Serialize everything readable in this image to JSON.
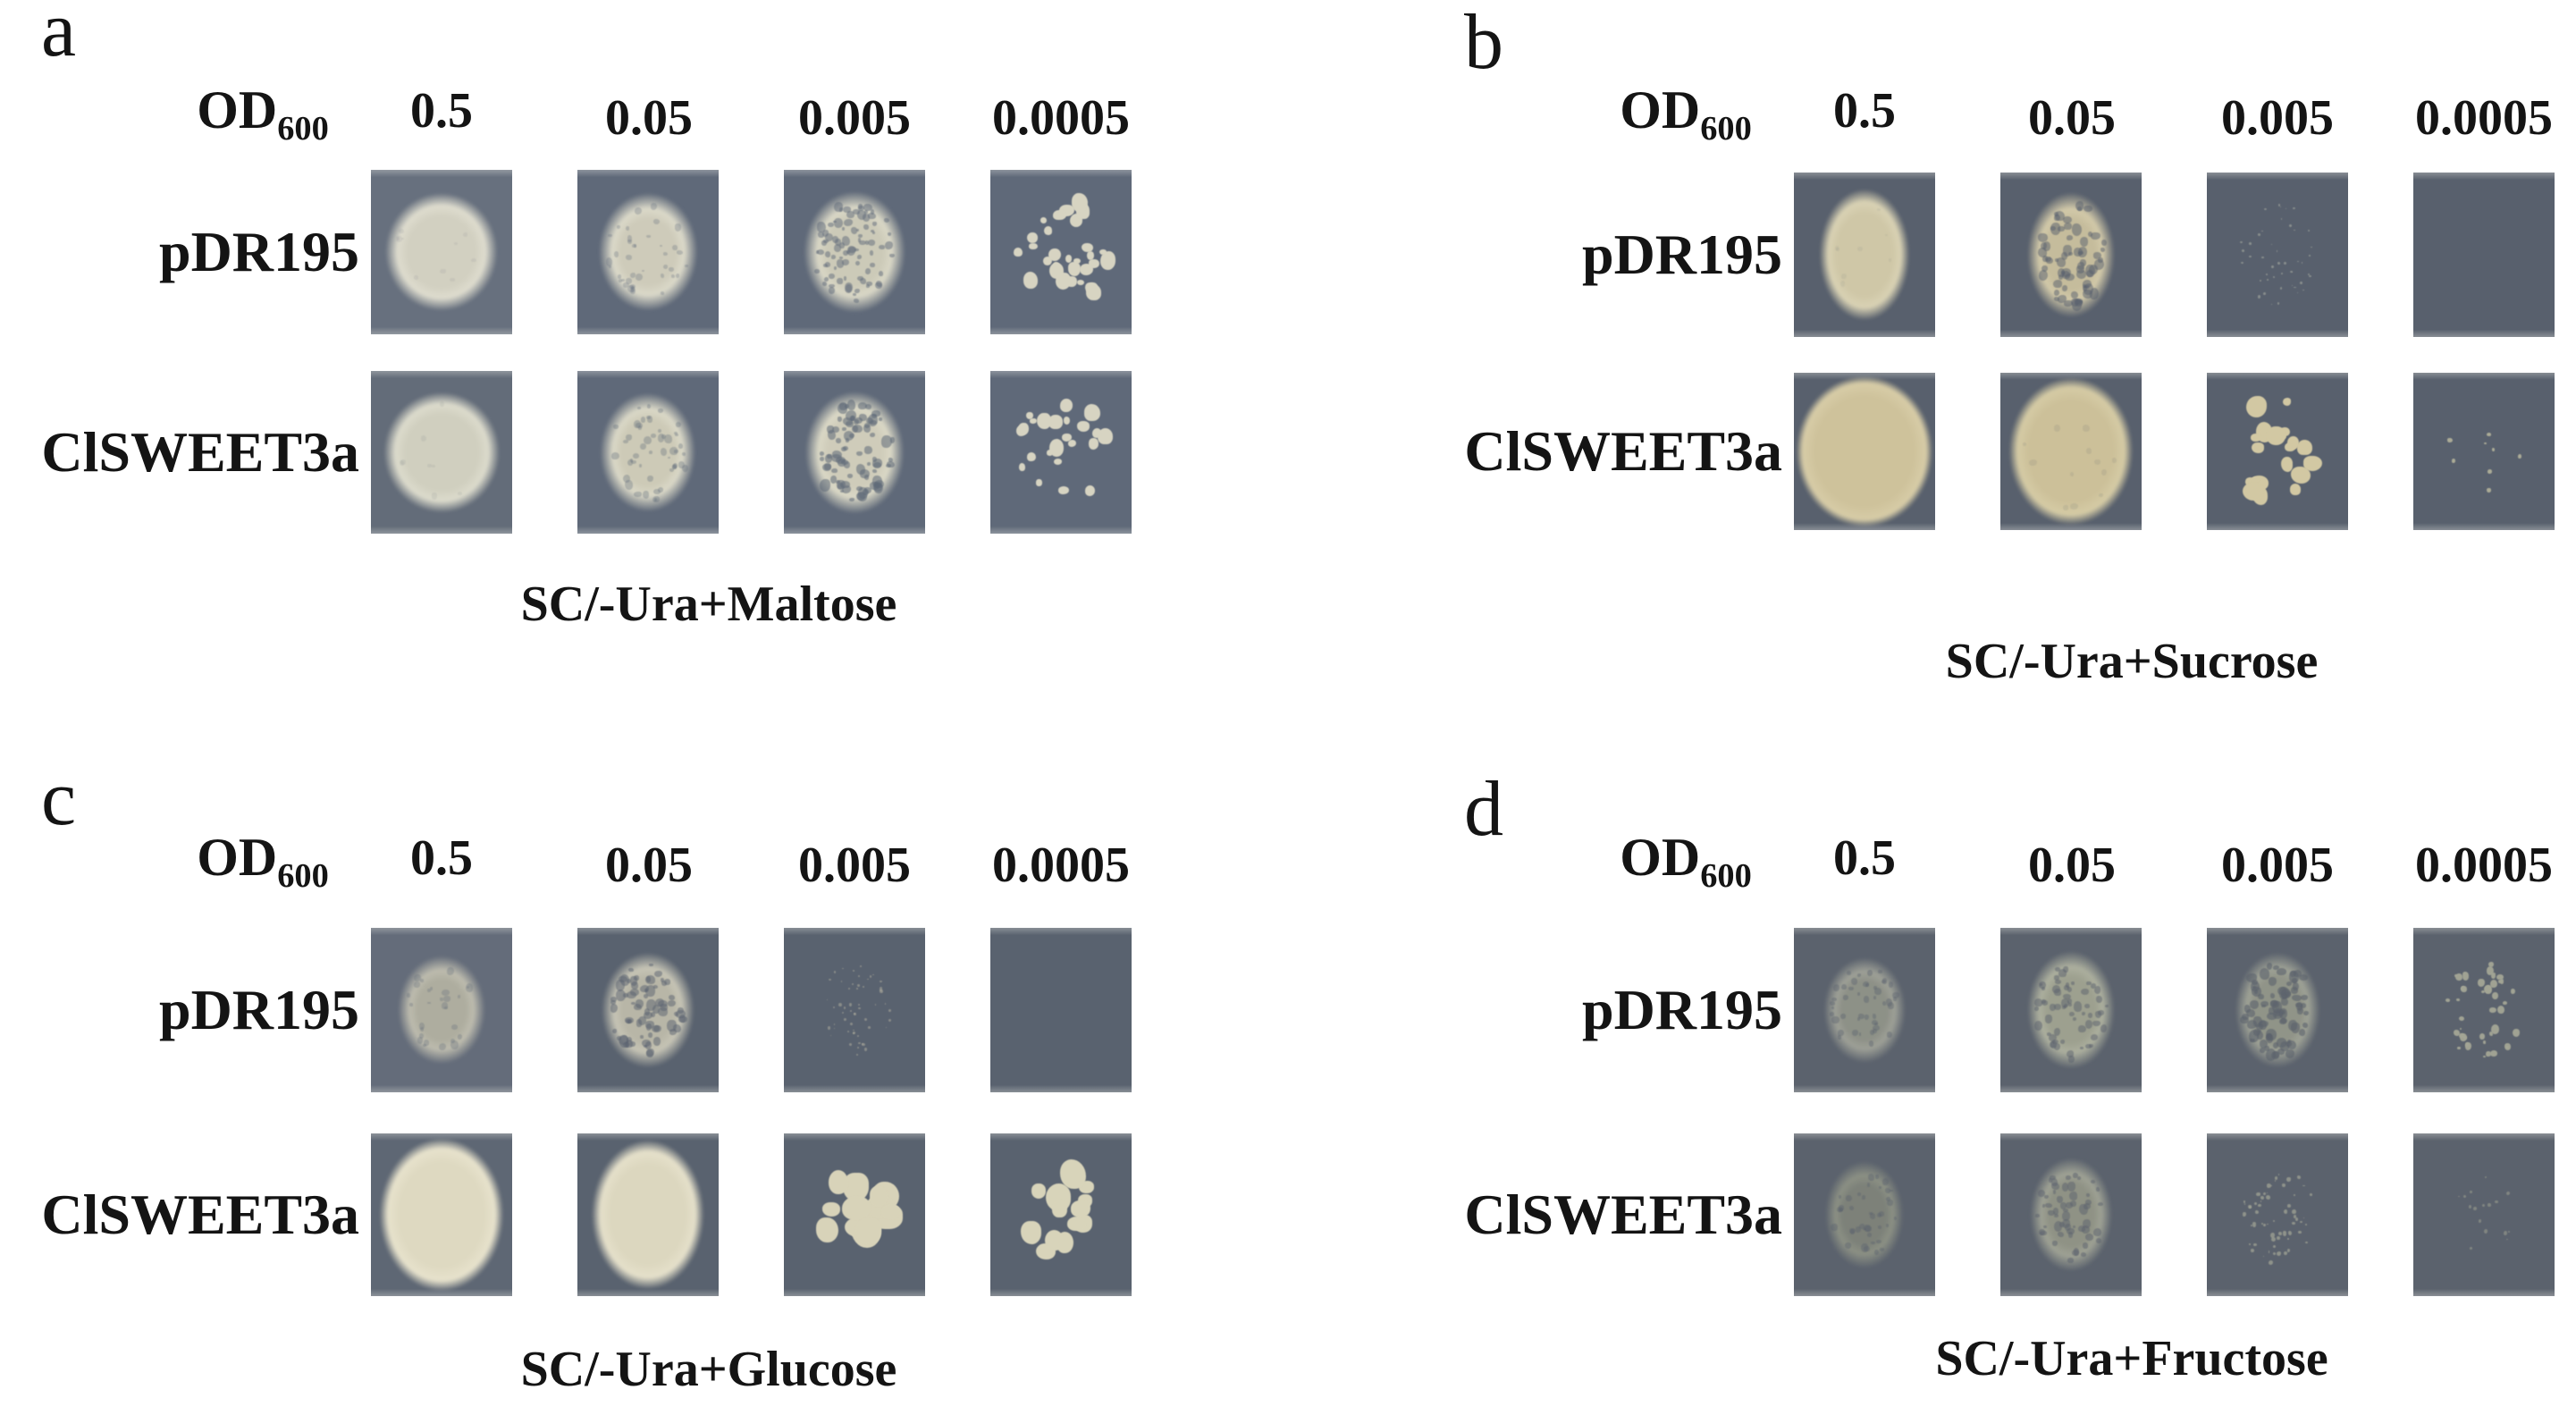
{
  "figure": {
    "background": "#ffffff",
    "text_color": "#141414",
    "od_label": {
      "text": "OD",
      "subscript": "600"
    },
    "dilution_labels": [
      "0.5",
      "0.05",
      "0.005",
      "0.0005"
    ],
    "row_labels": [
      "pDR195",
      "ClSWEET3a"
    ],
    "panels": [
      {
        "letter": "a",
        "caption": "SC/-Ura+Maltose",
        "square_color": "#5f6979",
        "rows": [
          {
            "label": "pDR195",
            "cells": [
              {
                "growth": "confluent lawn",
                "bg": "#67707e",
                "spot": {
                  "w": 0.8,
                  "h": 0.72,
                  "c": "#d2d0c1",
                  "rim": "#dedcce",
                  "core": 60
                },
                "tex": {
                  "n": 10,
                  "s": 0.03,
                  "a": 0.1
                }
              },
              {
                "growth": "confluent lawn",
                "spot": {
                  "w": 0.7,
                  "h": 0.72,
                  "c": "#cecbba",
                  "rim": "#dbd9c9"
                },
                "tex": {
                  "n": 40,
                  "s": 0.035,
                  "a": 0.28
                }
              },
              {
                "growth": "dense merged colonies",
                "spot": {
                  "w": 0.72,
                  "h": 0.74,
                  "c": "#cccab8",
                  "rim": "#d9d7c6"
                },
                "tex": {
                  "n": 85,
                  "s": 0.042,
                  "a": 0.5
                }
              },
              {
                "growth": "single colonies",
                "dots": {
                  "n": 30,
                  "s": 0.08,
                  "c": "#d7d4c2",
                  "sw": 0.36,
                  "sh": 0.35,
                  "jit": 0.45
                }
              }
            ]
          },
          {
            "label": "ClSWEET3a",
            "cells": [
              {
                "growth": "confluent lawn",
                "bg": "#636c79",
                "spot": {
                  "w": 0.82,
                  "h": 0.74,
                  "c": "#d0cfbf",
                  "rim": "#dcdbcc",
                  "core": 62
                },
                "tex": {
                  "n": 8,
                  "s": 0.03,
                  "a": 0.1
                }
              },
              {
                "growth": "confluent lawn",
                "spot": {
                  "w": 0.68,
                  "h": 0.73,
                  "c": "#cdcab7",
                  "rim": "#dad8c7"
                },
                "tex": {
                  "n": 50,
                  "s": 0.038,
                  "a": 0.33
                }
              },
              {
                "growth": "dense merged colonies",
                "spot": {
                  "w": 0.7,
                  "h": 0.75,
                  "c": "#cfccba",
                  "rim": "#dad8c6"
                },
                "tex": {
                  "n": 85,
                  "s": 0.05,
                  "a": 0.55
                }
              },
              {
                "growth": "single colonies",
                "dots": {
                  "n": 23,
                  "s": 0.078,
                  "c": "#d7d4c2",
                  "sw": 0.34,
                  "sh": 0.33,
                  "jit": 0.5
                }
              }
            ]
          }
        ]
      },
      {
        "letter": "b",
        "caption": "SC/-Ura+Sucrose",
        "square_color": "#58606d",
        "rows": [
          {
            "label": "pDR195",
            "cells": [
              {
                "growth": "confluent lawn",
                "spot": {
                  "w": 0.64,
                  "h": 0.8,
                  "c": "#cfc7a7",
                  "rim": "#d9d2b4",
                  "core": 62
                },
                "tex": {
                  "n": 8,
                  "s": 0.03,
                  "a": 0.08
                }
              },
              {
                "growth": "mottled lawn",
                "spot": {
                  "w": 0.62,
                  "h": 0.76,
                  "c": "#c5bc9c",
                  "rim": "#d2c9a9"
                },
                "tex": {
                  "n": 70,
                  "s": 0.05,
                  "a": 0.5
                }
              },
              {
                "growth": "very faint microcolonies",
                "dots": {
                  "n": 45,
                  "s": 0.013,
                  "c": "#aeb2a6",
                  "sw": 0.28,
                  "sh": 0.32,
                  "a": 0.55,
                  "jit": 0.6
                }
              },
              {
                "growth": "no growth"
              }
            ]
          },
          {
            "label": "ClSWEET3a",
            "cells": [
              {
                "growth": "strong confluent lawn",
                "spot": {
                  "w": 0.97,
                  "h": 0.96,
                  "c": "#cec29b",
                  "rim": "#d7cca7",
                  "core": 72
                }
              },
              {
                "growth": "strong confluent lawn",
                "spot": {
                  "w": 0.88,
                  "h": 0.94,
                  "c": "#ccc099",
                  "rim": "#d5cba5",
                  "core": 68
                },
                "tex": {
                  "n": 12,
                  "s": 0.04,
                  "a": 0.12
                }
              },
              {
                "growth": "single colonies",
                "dots": {
                  "n": 20,
                  "s": 0.095,
                  "c": "#d2c8a3",
                  "sw": 0.3,
                  "sh": 0.34,
                  "jit": 0.6
                }
              },
              {
                "growth": "few microcolonies",
                "dots": {
                  "n": 8,
                  "s": 0.028,
                  "c": "#b9b89e",
                  "sw": 0.28,
                  "sh": 0.36,
                  "a": 0.85,
                  "jit": 0.5
                }
              }
            ]
          }
        ]
      },
      {
        "letter": "c",
        "caption": "SC/-Ura+Glucose",
        "square_color": "#59626f",
        "rows": [
          {
            "label": "pDR195",
            "cells": [
              {
                "growth": "weak lawn",
                "bg": "#646c7a",
                "spot": {
                  "w": 0.62,
                  "h": 0.66,
                  "c": "#b3b1a2",
                  "rim": "#c2c0b1",
                  "a": 0.95
                },
                "tex": {
                  "n": 28,
                  "s": 0.04,
                  "a": 0.3
                }
              },
              {
                "growth": "mottled lawn",
                "spot": {
                  "w": 0.66,
                  "h": 0.7,
                  "c": "#b8b6a7",
                  "rim": "#c6c4b5"
                },
                "tex": {
                  "n": 75,
                  "s": 0.05,
                  "a": 0.5
                }
              },
              {
                "growth": "very faint microcolonies",
                "dots": {
                  "n": 55,
                  "s": 0.015,
                  "c": "#b5b2a1",
                  "sw": 0.26,
                  "sh": 0.28,
                  "a": 0.5,
                  "jit": 0.6
                }
              },
              {
                "growth": "no growth"
              }
            ]
          },
          {
            "label": "ClSWEET3a",
            "cells": [
              {
                "growth": "strong confluent lawn",
                "bg": "#5e6774",
                "spot": {
                  "w": 0.88,
                  "h": 0.94,
                  "c": "#ded9c1",
                  "rim": "#e7e2cc",
                  "core": 68
                }
              },
              {
                "growth": "strong confluent lawn",
                "spot": {
                  "w": 0.8,
                  "h": 0.92,
                  "c": "#dcd7bf",
                  "rim": "#e5e0ca",
                  "core": 66
                }
              },
              {
                "growth": "merged colony mass",
                "dots": {
                  "n": 15,
                  "s": 0.17,
                  "c": "#d8d3b9",
                  "sw": 0.27,
                  "sh": 0.3,
                  "jit": 0.35
                }
              },
              {
                "growth": "large single colonies",
                "dots": {
                  "n": 13,
                  "s": 0.14,
                  "c": "#d8d4ba",
                  "sw": 0.27,
                  "sh": 0.29,
                  "jit": 0.35
                }
              }
            ]
          }
        ]
      },
      {
        "letter": "d",
        "caption": "SC/-Ura+Fructose",
        "square_color": "#5b626d",
        "rows": [
          {
            "label": "pDR195",
            "cells": [
              {
                "growth": "faint granular lawn",
                "spot": {
                  "w": 0.58,
                  "h": 0.64,
                  "c": "#92958a",
                  "rim": "#a3a59a",
                  "a": 0.92
                },
                "tex": {
                  "n": 45,
                  "s": 0.035,
                  "a": 0.4
                }
              },
              {
                "growth": "granular lawn",
                "spot": {
                  "w": 0.62,
                  "h": 0.72,
                  "c": "#9da08f",
                  "rim": "#acaf9e"
                },
                "tex": {
                  "n": 60,
                  "s": 0.04,
                  "a": 0.5
                }
              },
              {
                "growth": "granular colonies",
                "spot": {
                  "w": 0.6,
                  "h": 0.7,
                  "c": "#989b8c",
                  "rim": "#a7aa9b",
                  "a": 0.88
                },
                "tex": {
                  "n": 85,
                  "s": 0.05,
                  "a": 0.6
                }
              },
              {
                "growth": "scattered microcolonies",
                "dots": {
                  "n": 42,
                  "s": 0.034,
                  "c": "#a4a696",
                  "sw": 0.28,
                  "sh": 0.3,
                  "a": 0.95,
                  "jit": 0.6
                }
              }
            ]
          },
          {
            "label": "ClSWEET3a",
            "cells": [
              {
                "growth": "very faint lawn",
                "spot": {
                  "w": 0.56,
                  "h": 0.66,
                  "c": "#83877c",
                  "rim": "#949888",
                  "a": 0.85
                },
                "tex": {
                  "n": 40,
                  "s": 0.035,
                  "a": 0.4
                }
              },
              {
                "growth": "granular lawn",
                "spot": {
                  "w": 0.58,
                  "h": 0.7,
                  "c": "#8f9285",
                  "rim": "#9ea194"
                },
                "tex": {
                  "n": 55,
                  "s": 0.04,
                  "a": 0.5
                }
              },
              {
                "growth": "sparse microcolonies",
                "dots": {
                  "n": 60,
                  "s": 0.02,
                  "c": "#9fa294",
                  "sw": 0.26,
                  "sh": 0.3,
                  "a": 0.75,
                  "jit": 0.6
                }
              },
              {
                "growth": "very sparse microcolonies",
                "dots": {
                  "n": 16,
                  "s": 0.018,
                  "c": "#999c8e",
                  "sw": 0.22,
                  "sh": 0.28,
                  "a": 0.6,
                  "jit": 0.6
                }
              }
            ]
          }
        ]
      }
    ]
  }
}
